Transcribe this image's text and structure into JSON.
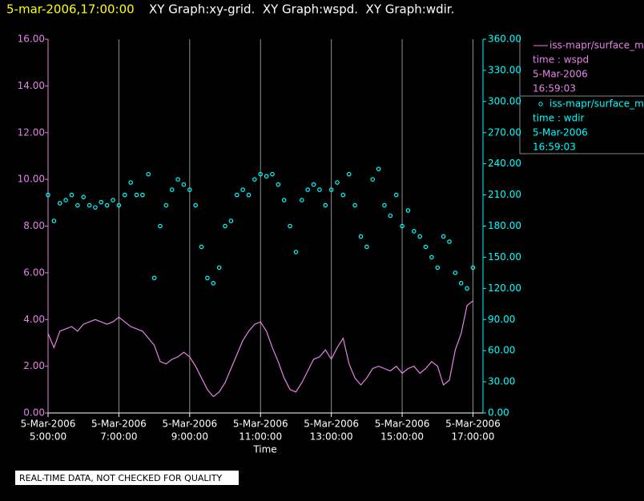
{
  "chart_data": {
    "type": "line",
    "title": "5-mar-2006,17:00:00",
    "subtitle": "XY Graph:xy-grid.  XY Graph:wspd.  XY Graph:wdir.",
    "xlabel": "Time",
    "note": "REAL-TIME DATA, NOT CHECKED FOR QUALITY",
    "grid": true,
    "legend": "right",
    "xlim": [
      "2006-03-05 05:00",
      "2006-03-05 17:17"
    ],
    "xticks": [
      {
        "value": "2006-03-05 05:00",
        "label": [
          "5-Mar-2006",
          "5:00:00"
        ]
      },
      {
        "value": "2006-03-05 07:00",
        "label": [
          "5-Mar-2006",
          "7:00:00"
        ]
      },
      {
        "value": "2006-03-05 09:00",
        "label": [
          "5-Mar-2006",
          "9:00:00"
        ]
      },
      {
        "value": "2006-03-05 11:00",
        "label": [
          "5-Mar-2006",
          "11:00:00"
        ]
      },
      {
        "value": "2006-03-05 13:00",
        "label": [
          "5-Mar-2006",
          "13:00:00"
        ]
      },
      {
        "value": "2006-03-05 15:00",
        "label": [
          "5-Mar-2006",
          "15:00:00"
        ]
      },
      {
        "value": "2006-03-05 17:00",
        "label": [
          "5-Mar-2006",
          "17:00:00"
        ]
      }
    ],
    "ylim": [
      0,
      16
    ],
    "yticks": [
      {
        "value": 0,
        "label": "0.00"
      },
      {
        "value": 2,
        "label": "2.00"
      },
      {
        "value": 4,
        "label": "4.00"
      },
      {
        "value": 6,
        "label": "6.00"
      },
      {
        "value": 8,
        "label": "8.00"
      },
      {
        "value": 10,
        "label": "10.00"
      },
      {
        "value": 12,
        "label": "12.00"
      },
      {
        "value": 14,
        "label": "14.00"
      },
      {
        "value": 16,
        "label": "16.00"
      }
    ],
    "y2lim": [
      0,
      360
    ],
    "y2ticks": [
      {
        "value": 0,
        "label": "0.00"
      },
      {
        "value": 30,
        "label": "30.00"
      },
      {
        "value": 60,
        "label": "60.00"
      },
      {
        "value": 90,
        "label": "90.00"
      },
      {
        "value": 120,
        "label": "120.00"
      },
      {
        "value": 150,
        "label": "150.00"
      },
      {
        "value": 180,
        "label": "180.00"
      },
      {
        "value": 210,
        "label": "210.00"
      },
      {
        "value": 240,
        "label": "240.00"
      },
      {
        "value": 270,
        "label": "270.00"
      },
      {
        "value": 300,
        "label": "300.00"
      },
      {
        "value": 330,
        "label": "330.00"
      },
      {
        "value": 360,
        "label": "360.00"
      }
    ],
    "x": [
      "2006-03-05 05:00",
      "2006-03-05 05:10",
      "2006-03-05 05:20",
      "2006-03-05 05:30",
      "2006-03-05 05:40",
      "2006-03-05 05:50",
      "2006-03-05 06:00",
      "2006-03-05 06:10",
      "2006-03-05 06:20",
      "2006-03-05 06:30",
      "2006-03-05 06:40",
      "2006-03-05 06:50",
      "2006-03-05 07:00",
      "2006-03-05 07:10",
      "2006-03-05 07:20",
      "2006-03-05 07:30",
      "2006-03-05 07:40",
      "2006-03-05 07:50",
      "2006-03-05 08:00",
      "2006-03-05 08:10",
      "2006-03-05 08:20",
      "2006-03-05 08:30",
      "2006-03-05 08:40",
      "2006-03-05 08:50",
      "2006-03-05 09:00",
      "2006-03-05 09:10",
      "2006-03-05 09:20",
      "2006-03-05 09:30",
      "2006-03-05 09:40",
      "2006-03-05 09:50",
      "2006-03-05 10:00",
      "2006-03-05 10:10",
      "2006-03-05 10:20",
      "2006-03-05 10:30",
      "2006-03-05 10:40",
      "2006-03-05 10:50",
      "2006-03-05 11:00",
      "2006-03-05 11:10",
      "2006-03-05 11:20",
      "2006-03-05 11:30",
      "2006-03-05 11:40",
      "2006-03-05 11:50",
      "2006-03-05 12:00",
      "2006-03-05 12:10",
      "2006-03-05 12:20",
      "2006-03-05 12:30",
      "2006-03-05 12:40",
      "2006-03-05 12:50",
      "2006-03-05 13:00",
      "2006-03-05 13:10",
      "2006-03-05 13:20",
      "2006-03-05 13:30",
      "2006-03-05 13:40",
      "2006-03-05 13:50",
      "2006-03-05 14:00",
      "2006-03-05 14:10",
      "2006-03-05 14:20",
      "2006-03-05 14:30",
      "2006-03-05 14:40",
      "2006-03-05 14:50",
      "2006-03-05 15:00",
      "2006-03-05 15:10",
      "2006-03-05 15:20",
      "2006-03-05 15:30",
      "2006-03-05 15:40",
      "2006-03-05 15:50",
      "2006-03-05 16:00",
      "2006-03-05 16:10",
      "2006-03-05 16:20",
      "2006-03-05 16:30",
      "2006-03-05 16:40",
      "2006-03-05 16:50",
      "2006-03-05 17:00"
    ],
    "series": [
      {
        "name": "iss-mapr/surface_m",
        "type": "line",
        "axis": "y",
        "color": "#e683e6",
        "details": [
          "time : wspd",
          "5-Mar-2006",
          "16:59:03"
        ],
        "values": [
          3.4,
          2.8,
          3.5,
          3.6,
          3.7,
          3.5,
          3.8,
          3.9,
          4.0,
          3.9,
          3.8,
          3.9,
          4.1,
          3.9,
          3.7,
          3.6,
          3.5,
          3.2,
          2.9,
          2.2,
          2.1,
          2.3,
          2.4,
          2.6,
          2.4,
          2.0,
          1.5,
          1.0,
          0.7,
          0.9,
          1.3,
          1.9,
          2.5,
          3.1,
          3.5,
          3.8,
          3.9,
          3.5,
          2.8,
          2.2,
          1.5,
          1.0,
          0.9,
          1.3,
          1.8,
          2.3,
          2.4,
          2.7,
          2.3,
          2.8,
          3.2,
          2.1,
          1.5,
          1.2,
          1.5,
          1.9,
          2.0,
          1.9,
          1.8,
          2.0,
          1.7,
          1.9,
          2.0,
          1.7,
          1.9,
          2.2,
          2.0,
          1.2,
          1.4,
          2.7,
          3.4,
          4.6,
          4.8
        ]
      },
      {
        "name": "iss-mapr/surface_m",
        "type": "scatter",
        "axis": "y2",
        "color": "#00ffff",
        "details": [
          "time : wdir",
          "5-Mar-2006",
          "16:59:03"
        ],
        "values": [
          210,
          185,
          202,
          205,
          210,
          200,
          208,
          200,
          198,
          203,
          200,
          205,
          200,
          210,
          222,
          210,
          210,
          230,
          130,
          180,
          200,
          215,
          225,
          220,
          215,
          200,
          160,
          130,
          125,
          140,
          180,
          185,
          210,
          215,
          210,
          225,
          230,
          228,
          230,
          220,
          205,
          180,
          155,
          205,
          215,
          220,
          215,
          200,
          215,
          222,
          210,
          230,
          200,
          170,
          160,
          225,
          235,
          200,
          190,
          210,
          180,
          195,
          175,
          170,
          160,
          150,
          140,
          170,
          165,
          135,
          125,
          120,
          140
        ]
      }
    ]
  }
}
